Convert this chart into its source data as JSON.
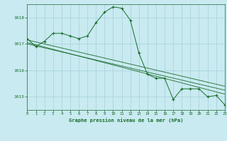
{
  "title": "Graphe pression niveau de la mer (hPa)",
  "background_color": "#c8eaf0",
  "grid_color": "#a0c8d8",
  "line_color": "#1a6b2a",
  "xlim": [
    0,
    23
  ],
  "ylim": [
    1014.5,
    1018.5
  ],
  "yticks": [
    1015,
    1016,
    1017,
    1018
  ],
  "xticks": [
    0,
    1,
    2,
    3,
    4,
    5,
    6,
    7,
    8,
    9,
    10,
    11,
    12,
    13,
    14,
    15,
    16,
    17,
    18,
    19,
    20,
    21,
    22,
    23
  ],
  "series1": {
    "x": [
      0,
      1,
      2,
      3,
      4,
      5,
      6,
      7,
      8,
      9,
      10,
      11,
      12,
      13,
      14,
      15,
      16,
      17,
      18,
      19,
      20,
      21,
      22,
      23
    ],
    "y": [
      1017.2,
      1016.9,
      1017.1,
      1017.4,
      1017.4,
      1017.3,
      1017.2,
      1017.3,
      1017.8,
      1018.2,
      1018.4,
      1018.35,
      1017.9,
      1016.65,
      1015.85,
      1015.7,
      1015.7,
      1014.9,
      1015.3,
      1015.3,
      1015.3,
      1015.0,
      1015.05,
      1014.7
    ]
  },
  "series2": {
    "x": [
      0,
      23
    ],
    "y": [
      1017.15,
      1015.4
    ]
  },
  "series3": {
    "x": [
      0,
      23
    ],
    "y": [
      1017.0,
      1015.25
    ]
  },
  "series4": {
    "x": [
      0,
      23
    ],
    "y": [
      1017.05,
      1015.1
    ]
  }
}
